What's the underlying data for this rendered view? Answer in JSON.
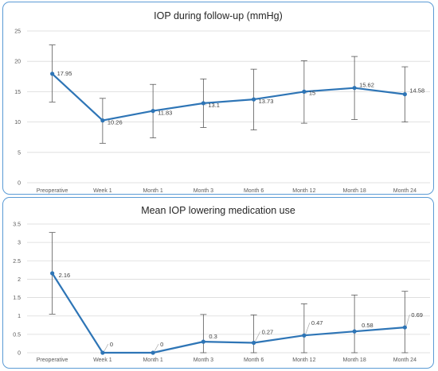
{
  "colors": {
    "series": "#2e75b6",
    "error_bar": "#595959",
    "grid": "#d9d9d9",
    "leader": "#a6a6a6",
    "border": "#5b9bd5"
  },
  "chart_data": [
    {
      "type": "line",
      "title": "IOP during follow-up (mmHg)",
      "xlabel": "",
      "ylabel": "",
      "categories": [
        "Preoperative",
        "Week 1",
        "Month 1",
        "Month 3",
        "Month 6",
        "Month 12",
        "Month 18",
        "Month 24"
      ],
      "values": [
        17.95,
        10.26,
        11.83,
        13.1,
        13.73,
        15,
        15.62,
        14.58
      ],
      "data_labels": [
        "17.95",
        "10.26",
        "11.83",
        "13.1",
        "13.73",
        "15",
        "15.62",
        "14.58"
      ],
      "error_high": [
        22.7,
        13.9,
        16.2,
        17.1,
        18.7,
        20.1,
        20.8,
        19.1
      ],
      "error_low": [
        13.3,
        6.5,
        7.4,
        9.1,
        8.7,
        9.8,
        10.4,
        10.0
      ],
      "ylim": [
        0,
        25
      ],
      "yticks": [
        "0",
        "5",
        "10",
        "15",
        "20",
        "25"
      ],
      "grid": true,
      "legend": "none"
    },
    {
      "type": "line",
      "title": "Mean IOP lowering medication use",
      "xlabel": "",
      "ylabel": "",
      "categories": [
        "Preoperative",
        "Week 1",
        "Month 1",
        "Month 3",
        "Month 6",
        "Month 12",
        "Month 18",
        "Month 24"
      ],
      "values": [
        2.16,
        0,
        0,
        0.3,
        0.27,
        0.47,
        0.58,
        0.69
      ],
      "data_labels": [
        "2.16",
        "0",
        "0",
        "0.3",
        "0.27",
        "0.47",
        "0.58",
        "0.69"
      ],
      "error_high": [
        3.27,
        null,
        null,
        1.04,
        1.03,
        1.33,
        1.57,
        1.67
      ],
      "error_low": [
        1.05,
        null,
        null,
        0,
        0,
        0,
        0,
        0
      ],
      "ylim": [
        0,
        3.5
      ],
      "yticks": [
        "0",
        "0.5",
        "1",
        "1.5",
        "2",
        "2.5",
        "3",
        "3.5"
      ],
      "grid": true,
      "legend": "none"
    }
  ]
}
